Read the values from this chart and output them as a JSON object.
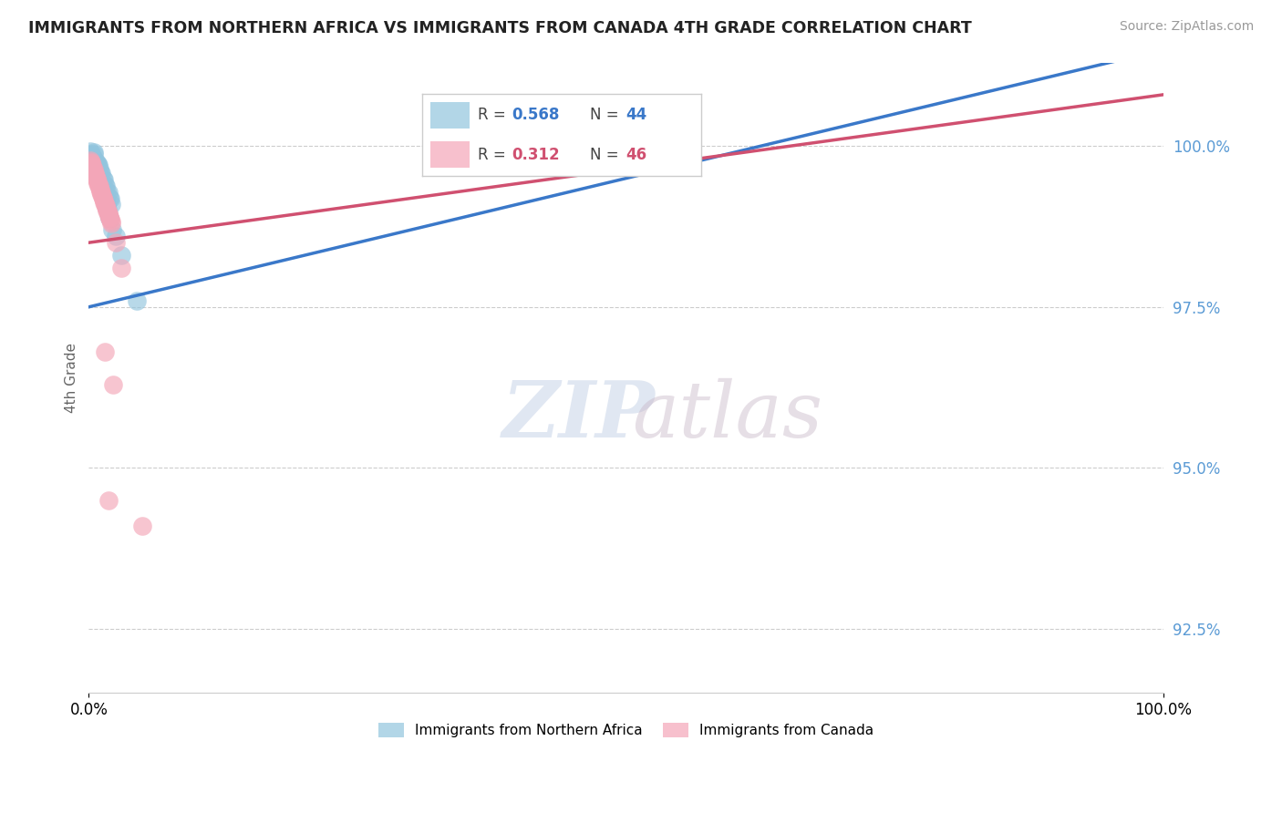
{
  "title": "IMMIGRANTS FROM NORTHERN AFRICA VS IMMIGRANTS FROM CANADA 4TH GRADE CORRELATION CHART",
  "source": "Source: ZipAtlas.com",
  "ylabel": "4th Grade",
  "xlim": [
    0,
    100
  ],
  "ylim": [
    91.5,
    101.3
  ],
  "yticks": [
    92.5,
    95.0,
    97.5,
    100.0
  ],
  "ytick_labels": [
    "92.5%",
    "95.0%",
    "97.5%",
    "100.0%"
  ],
  "xtick_labels": [
    "0.0%",
    "100.0%"
  ],
  "blue_R": 0.568,
  "blue_N": 44,
  "pink_R": 0.312,
  "pink_N": 46,
  "blue_color": "#92c5de",
  "pink_color": "#f4a6b8",
  "blue_line_color": "#3a78c9",
  "pink_line_color": "#d05070",
  "legend_border_color": "#cccccc",
  "grid_color": "#cccccc",
  "tick_color": "#5b9bd5",
  "blue_label": "Immigrants from Northern Africa",
  "pink_label": "Immigrants from Canada",
  "blue_x": [
    0.3,
    0.5,
    0.7,
    0.9,
    1.1,
    1.3,
    1.5,
    1.7,
    1.9,
    2.1,
    0.2,
    0.4,
    0.6,
    0.8,
    1.0,
    1.2,
    1.4,
    1.6,
    1.8,
    2.0,
    0.25,
    0.35,
    0.45,
    0.55,
    0.65,
    0.75,
    0.85,
    0.95,
    1.05,
    1.15,
    1.25,
    1.35,
    1.45,
    1.55,
    1.65,
    1.75,
    1.85,
    1.95,
    2.5,
    3.0,
    0.15,
    0.5,
    2.2,
    4.5
  ],
  "blue_y": [
    99.8,
    99.9,
    99.75,
    99.7,
    99.6,
    99.5,
    99.4,
    99.3,
    99.2,
    99.1,
    99.85,
    99.82,
    99.78,
    99.72,
    99.65,
    99.58,
    99.48,
    99.38,
    99.28,
    99.18,
    99.87,
    99.83,
    99.79,
    99.74,
    99.69,
    99.63,
    99.57,
    99.51,
    99.45,
    99.4,
    99.35,
    99.28,
    99.22,
    99.15,
    99.08,
    99.01,
    98.94,
    98.88,
    98.6,
    98.3,
    99.92,
    99.88,
    98.7,
    97.6
  ],
  "pink_x": [
    0.2,
    0.4,
    0.6,
    0.8,
    1.0,
    1.2,
    1.4,
    1.6,
    1.8,
    2.0,
    0.3,
    0.5,
    0.7,
    0.9,
    1.1,
    1.3,
    1.5,
    1.7,
    1.9,
    2.1,
    0.25,
    0.45,
    0.65,
    0.85,
    1.05,
    1.25,
    1.45,
    1.65,
    1.85,
    2.05,
    0.15,
    0.35,
    0.55,
    0.75,
    0.95,
    1.15,
    1.35,
    1.55,
    1.75,
    1.95,
    2.5,
    3.0,
    1.5,
    2.3,
    1.8,
    5.0
  ],
  "pink_y": [
    99.75,
    99.65,
    99.55,
    99.45,
    99.35,
    99.25,
    99.15,
    99.05,
    98.95,
    98.85,
    99.7,
    99.6,
    99.5,
    99.4,
    99.3,
    99.2,
    99.1,
    99.0,
    98.9,
    98.8,
    99.73,
    99.63,
    99.53,
    99.43,
    99.33,
    99.23,
    99.13,
    99.03,
    98.93,
    98.83,
    99.78,
    99.68,
    99.58,
    99.48,
    99.38,
    99.28,
    99.18,
    99.08,
    98.98,
    98.88,
    98.5,
    98.1,
    96.8,
    96.3,
    94.5,
    94.1
  ],
  "blue_trendline_x": [
    0,
    100
  ],
  "blue_trendline_y_start": 97.5,
  "blue_trendline_y_end": 101.5,
  "pink_trendline_y_start": 98.5,
  "pink_trendline_y_end": 100.8,
  "watermark_zip": "ZIP",
  "watermark_atlas": "atlas"
}
